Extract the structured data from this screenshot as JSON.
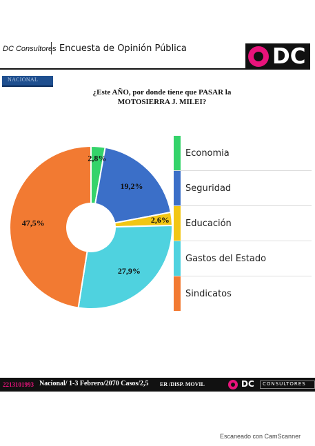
{
  "header": {
    "brand": "DC Consultores",
    "survey_title": "Encuesta de Opinión Pública",
    "logo_text": "DC"
  },
  "section_tag": "NACIONAL",
  "question_lines": [
    "¿Este AÑO, por donde tiene que PASAR la",
    "MOTOSIERRA J. MILEI?"
  ],
  "chart_data": {
    "type": "pie",
    "donut": true,
    "start_angle_deg": 0,
    "direction": "clockwise",
    "slices": [
      {
        "label": "Economia",
        "value": 2.8,
        "value_label": "2,8%",
        "color": "#34d36a"
      },
      {
        "label": "Seguridad",
        "value": 19.2,
        "value_label": "19,2%",
        "color": "#3b6fc8"
      },
      {
        "label": "Educación",
        "value": 2.6,
        "value_label": "2,6%",
        "color": "#f2c614"
      },
      {
        "label": "Gastos del Estado",
        "value": 27.9,
        "value_label": "27,9%",
        "color": "#4fd2df"
      },
      {
        "label": "Sindicatos",
        "value": 47.5,
        "value_label": "47,5%",
        "color": "#f27a32"
      }
    ],
    "legend_position": "right"
  },
  "footer": {
    "code": "2213101993",
    "text": "Nacional/ 1-3 Febrero/2070 Casos/2,5",
    "mobile": "ER /DISP. MOVIL",
    "logo_text": "DC",
    "consultores": "CONSULTORES"
  },
  "scanner_note": "Escaneado con CamScanner"
}
